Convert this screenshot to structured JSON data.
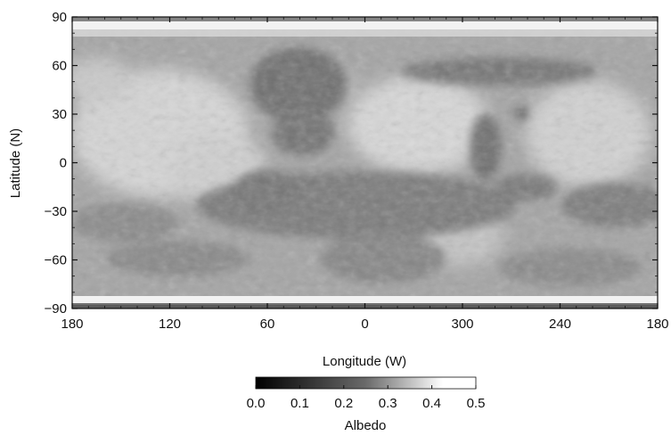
{
  "map": {
    "x_axis_label": "Longitude (W)",
    "y_axis_label": "Latitude (N)",
    "x_ticks": [
      "180",
      "120",
      "60",
      "0",
      "300",
      "240",
      "180"
    ],
    "y_ticks": [
      "90",
      "60",
      "30",
      "0",
      "−30",
      "−60",
      "−90"
    ],
    "surface_tones": {
      "bright_terrain": "#d6d6d6",
      "mid_terrain": "#a4a4a4",
      "dark_terrain": "#6e6e6e",
      "polar_ice": "#f2f2f2"
    }
  },
  "colorbar": {
    "label": "Albedo",
    "ticks": [
      "0.0",
      "0.1",
      "0.2",
      "0.3",
      "0.4",
      "0.5"
    ],
    "range": [
      0.0,
      0.5
    ],
    "gradient_start": "#000000",
    "gradient_end": "#ffffff"
  }
}
